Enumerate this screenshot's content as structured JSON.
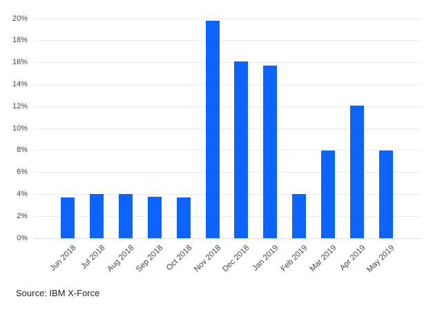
{
  "chart_data": {
    "type": "bar",
    "title": "",
    "xlabel": "",
    "ylabel": "",
    "categories": [
      "Jun 2018",
      "Jul 2018",
      "Aug 2018",
      "Sep 2018",
      "Oct 2018",
      "Nov 2018",
      "Dec 2018",
      "Jan 2019",
      "Feb 2019",
      "Mar 2019",
      "Apr 2019",
      "May 2019"
    ],
    "values": [
      3.7,
      4.0,
      4.0,
      3.8,
      3.7,
      19.8,
      16.1,
      15.7,
      4.0,
      8.0,
      12.1,
      8.0
    ],
    "ylim": [
      0,
      20
    ],
    "y_tick_step": 2,
    "y_tick_labels": [
      "0%",
      "2%",
      "4%",
      "6%",
      "8%",
      "10%",
      "12%",
      "14%",
      "16%",
      "18%",
      "20%"
    ],
    "grid": true,
    "legend": false,
    "annotation_source": "Source: IBM X-Force"
  },
  "colors": {
    "bar": "#0d64fa",
    "gridline": "#ebebeb",
    "baseline": "#dedede",
    "tick_label": "#3f4654",
    "source_text": "#262626",
    "background": "#ffffff"
  }
}
